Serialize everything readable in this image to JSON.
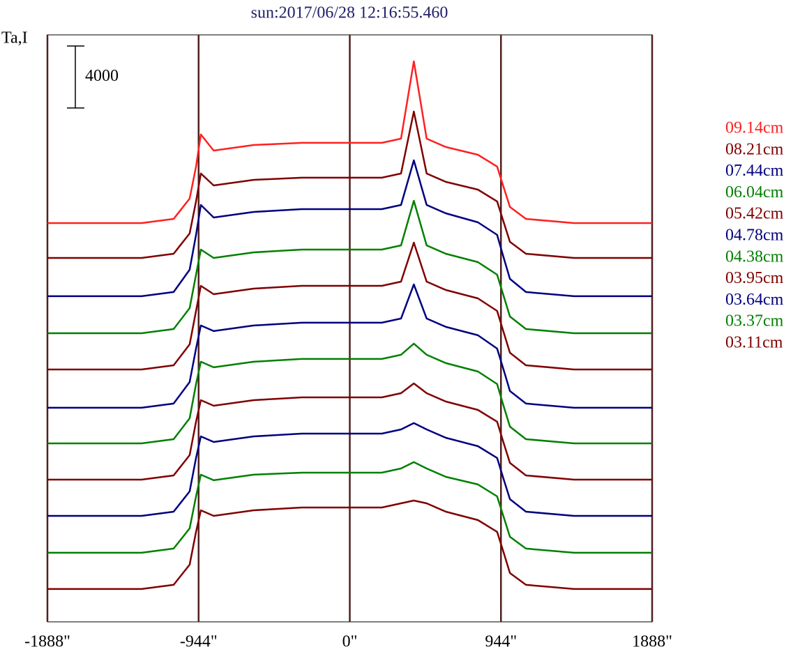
{
  "chart_data": {
    "type": "line",
    "title": "sun:2017/06/28 12:16:55.460",
    "y_label": "Ta,I",
    "scale_bar": 4000,
    "grid": true,
    "x": [
      -1888,
      -1300,
      -1100,
      -1000,
      -960,
      -930,
      -850,
      -600,
      -300,
      0,
      200,
      320,
      400,
      480,
      600,
      800,
      920,
      960,
      1000,
      1100,
      1400,
      1888
    ],
    "xlim": [
      -1888,
      1888
    ],
    "xticks": [
      {
        "value": -1888,
        "label": "-1888\""
      },
      {
        "value": -944,
        "label": "-944\""
      },
      {
        "value": 0,
        "label": "0\""
      },
      {
        "value": 944,
        "label": "944\""
      },
      {
        "value": 1888,
        "label": "1888\""
      }
    ],
    "ylim": [
      0,
      37890
    ],
    "series": [
      {
        "name": "09.14cm",
        "color": "#ff2020",
        "values": [
          25740,
          25740,
          26010,
          27320,
          29390,
          31460,
          30420,
          30780,
          30920,
          30920,
          30920,
          31190,
          36180,
          31190,
          30650,
          30150,
          29390,
          28080,
          26780,
          26010,
          25740,
          25740
        ]
      },
      {
        "name": "08.21cm",
        "color": "#800000",
        "values": [
          23490,
          23490,
          23760,
          25070,
          27140,
          28940,
          28170,
          28530,
          28670,
          28670,
          28670,
          28940,
          32940,
          28940,
          28400,
          27900,
          27140,
          25830,
          24530,
          23760,
          23490,
          23490
        ]
      },
      {
        "name": "07.44cm",
        "color": "#000080",
        "values": [
          21020,
          21020,
          21290,
          22730,
          24980,
          26910,
          26100,
          26460,
          26640,
          26640,
          26640,
          26910,
          29790,
          26910,
          26370,
          25790,
          24980,
          23540,
          22140,
          21290,
          21020,
          21020
        ]
      },
      {
        "name": "06.04cm",
        "color": "#008000",
        "values": [
          18630,
          18630,
          18900,
          20250,
          22410,
          24030,
          23490,
          23850,
          24030,
          24030,
          24030,
          24300,
          27180,
          24300,
          23760,
          23220,
          22410,
          21060,
          19710,
          18900,
          18630,
          18630
        ]
      },
      {
        "name": "05.42cm",
        "color": "#800000",
        "values": [
          16290,
          16290,
          16560,
          17910,
          20070,
          21690,
          21150,
          21510,
          21690,
          21690,
          21690,
          21960,
          24480,
          21960,
          21420,
          20880,
          20070,
          18720,
          17370,
          16560,
          16290,
          16290
        ]
      },
      {
        "name": "04.78cm",
        "color": "#000080",
        "values": [
          13820,
          13820,
          14090,
          15480,
          17640,
          19130,
          18770,
          19130,
          19310,
          19310,
          19310,
          19580,
          21780,
          19580,
          19040,
          18500,
          17640,
          16290,
          14900,
          14090,
          13820,
          13820
        ]
      },
      {
        "name": "04.38cm",
        "color": "#008000",
        "values": [
          11520,
          11520,
          11790,
          13140,
          15350,
          16790,
          16430,
          16790,
          16970,
          16970,
          16970,
          17240,
          17960,
          17240,
          16700,
          16160,
          15350,
          13950,
          12600,
          11790,
          11520,
          11520
        ]
      },
      {
        "name": "03.95cm",
        "color": "#800000",
        "values": [
          9180,
          9180,
          9450,
          10760,
          12920,
          14310,
          13950,
          14310,
          14490,
          14490,
          14490,
          14760,
          15390,
          14760,
          14220,
          13680,
          12920,
          11570,
          10260,
          9450,
          9180,
          9180
        ]
      },
      {
        "name": "03.64cm",
        "color": "#000080",
        "values": [
          6840,
          6840,
          7110,
          8420,
          10580,
          11970,
          11610,
          11970,
          12150,
          12150,
          12150,
          12420,
          12830,
          12420,
          11880,
          11340,
          10580,
          9230,
          7920,
          7110,
          6840,
          6840
        ]
      },
      {
        "name": "03.37cm",
        "color": "#008000",
        "values": [
          4460,
          4460,
          4730,
          6030,
          8100,
          9500,
          9140,
          9500,
          9630,
          9630,
          9630,
          9900,
          10310,
          9900,
          9360,
          8870,
          8100,
          6800,
          5490,
          4730,
          4460,
          4460
        ]
      },
      {
        "name": "03.11cm",
        "color": "#800000",
        "values": [
          2120,
          2120,
          2390,
          3690,
          5810,
          7200,
          6840,
          7200,
          7380,
          7380,
          7380,
          7650,
          7830,
          7650,
          7110,
          6570,
          5810,
          4500,
          3150,
          2390,
          2120,
          2120
        ]
      }
    ]
  }
}
